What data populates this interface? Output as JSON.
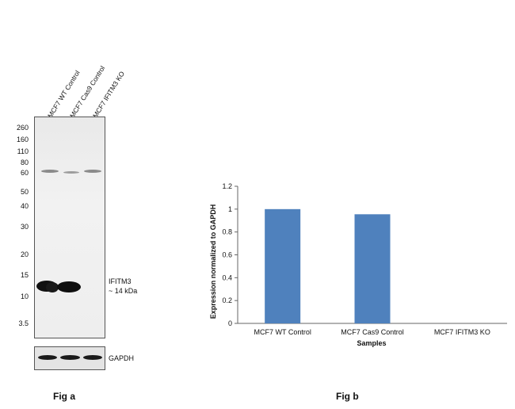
{
  "fig_a": {
    "caption": "Fig a",
    "lanes": [
      "MCF7 WT Control",
      "MCF7 Cas9 Control",
      "MCF7 IFITM3  KO"
    ],
    "markers": [
      "260",
      "160",
      "110",
      "80",
      "60",
      "50",
      "40",
      "30",
      "20",
      "15",
      "10",
      "3.5"
    ],
    "target_label": "IFITM3",
    "target_size": "~ 14 kDa",
    "loading_control": "GAPDH"
  },
  "fig_b": {
    "caption": "Fig b"
  },
  "chart_data": {
    "type": "bar",
    "categories": [
      "MCF7 WT Control",
      "MCF7 Cas9 Control",
      "MCF7 IFITM3 KO"
    ],
    "values": [
      1.0,
      0.955,
      0.0
    ],
    "title": "",
    "xlabel": "Samples",
    "ylabel": "Expression  normalized to GAPDH",
    "ylim": [
      0,
      1.2
    ],
    "yticks": [
      "0",
      "0.2",
      "0.4",
      "0.6",
      "0.8",
      "1",
      "1.2"
    ],
    "bar_color": "#4f81bd",
    "grid": false,
    "legend": "none"
  }
}
